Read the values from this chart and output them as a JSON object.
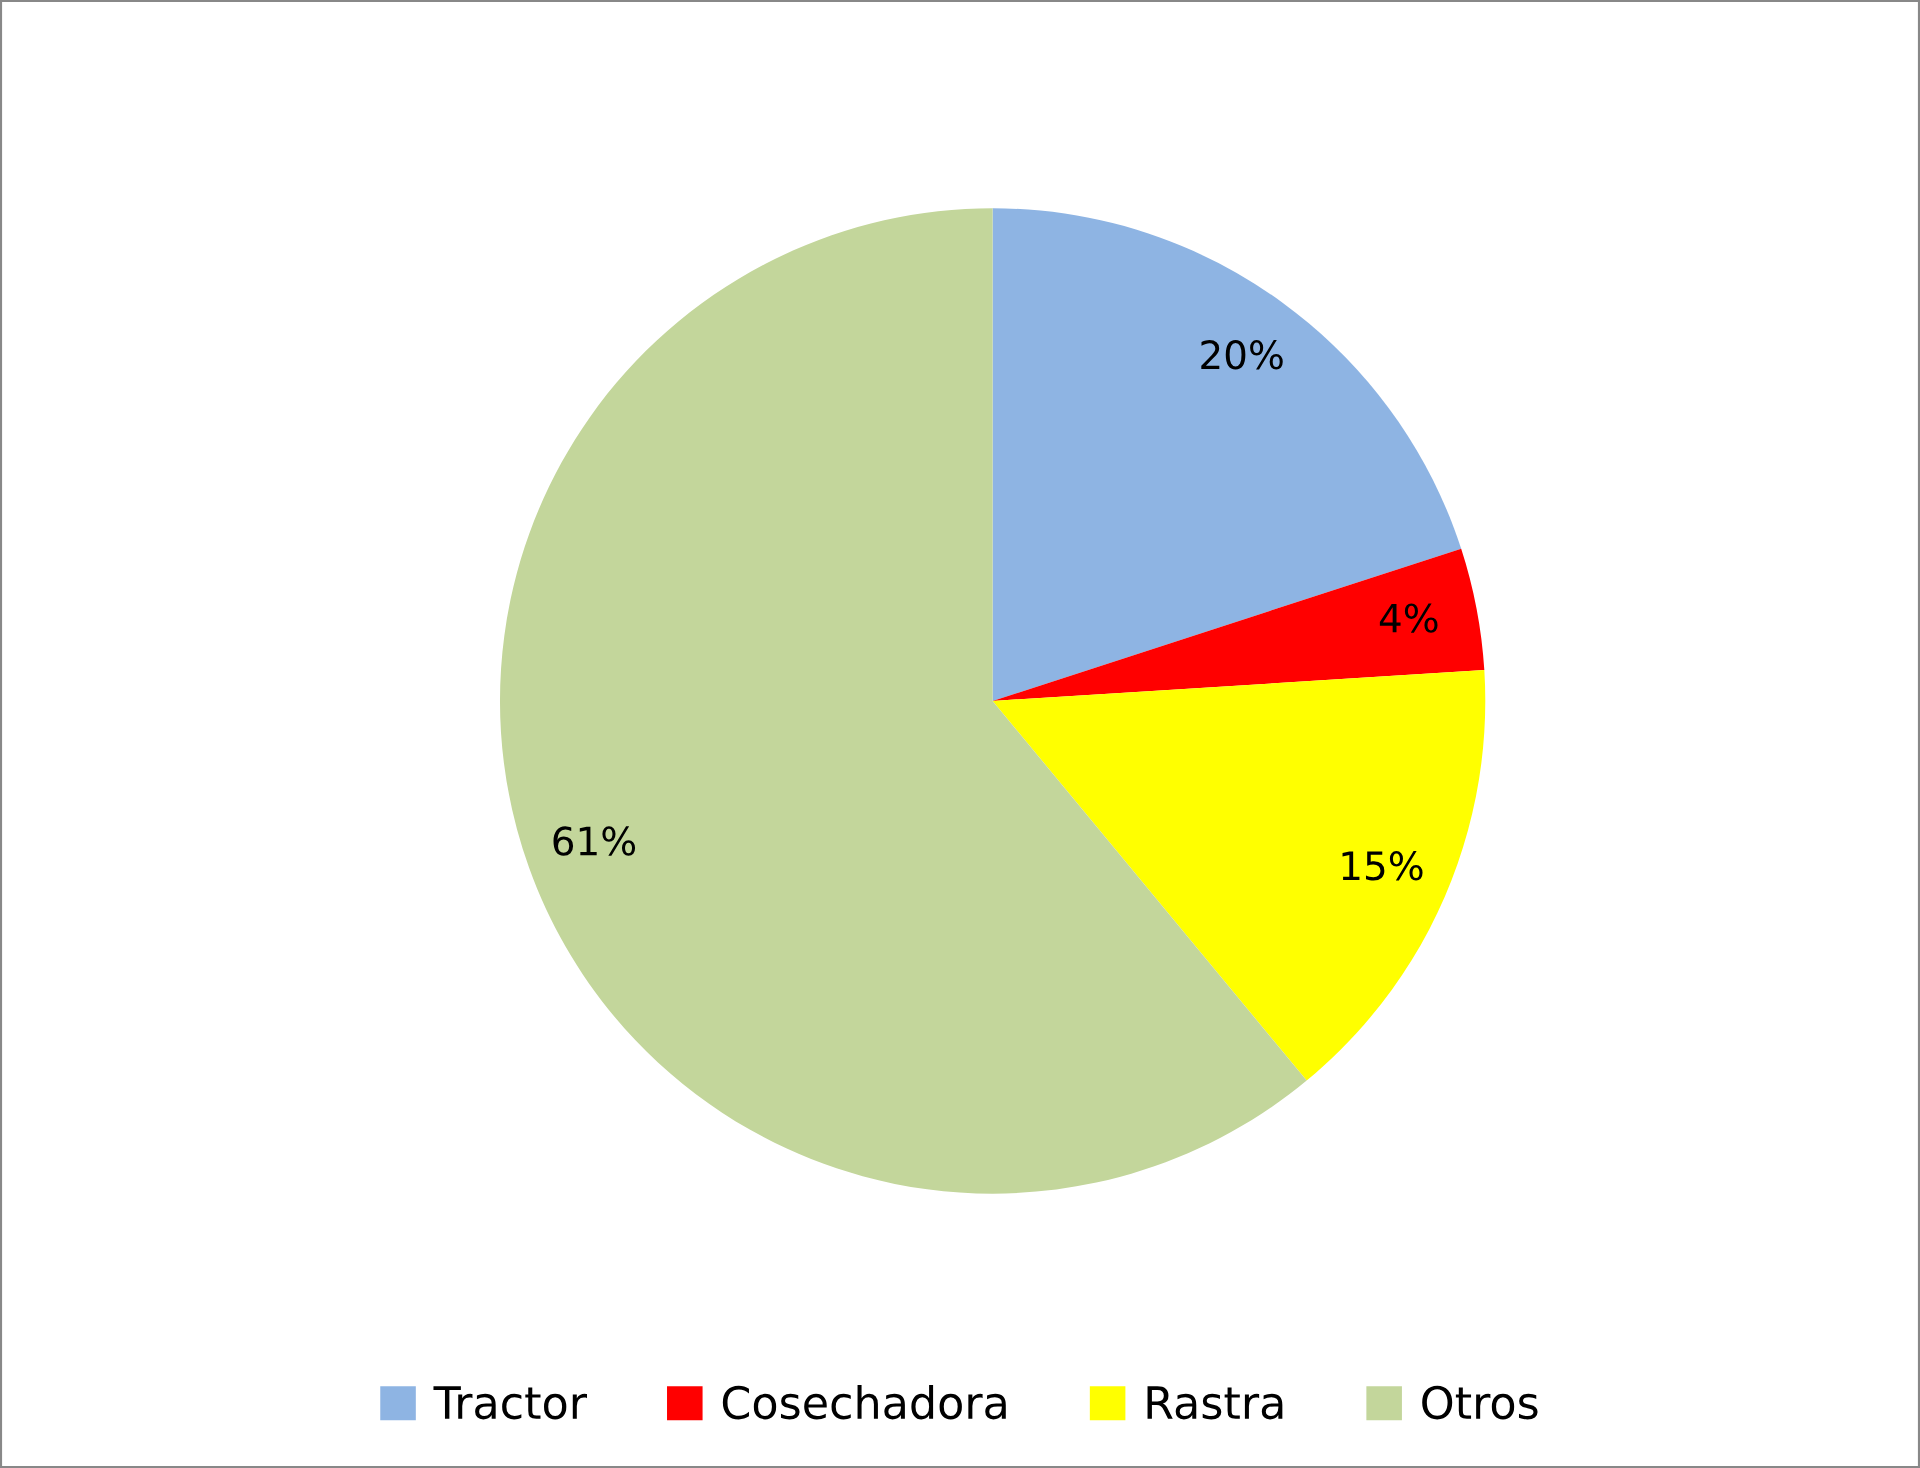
{
  "chart_data": {
    "type": "pie",
    "categories": [
      "Tractor",
      "Cosechadora",
      "Rastra",
      "Otros"
    ],
    "values": [
      20,
      4,
      15,
      61
    ],
    "colors": [
      "#8eb4e3",
      "#ff0000",
      "#ffff00",
      "#c3d69b"
    ],
    "value_labels": [
      "20%",
      "4%",
      "15%",
      "61%"
    ],
    "legend": "bottom"
  }
}
